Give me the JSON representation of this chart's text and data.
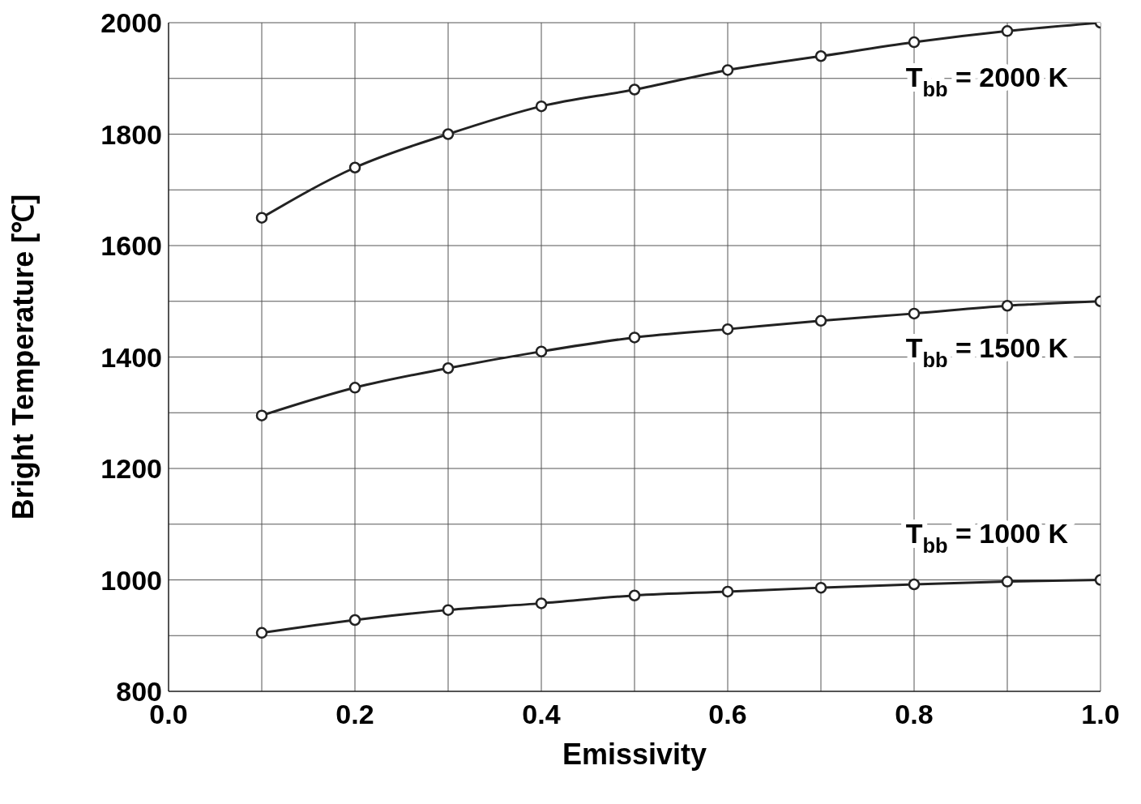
{
  "chart_data": {
    "type": "line",
    "xlabel": "Emissivity",
    "ylabel": "Bright Temperature [℃]",
    "xlim": [
      0,
      1
    ],
    "ylim": [
      800,
      2000
    ],
    "xticks": [
      {
        "value": 0,
        "label": "0.0"
      },
      {
        "value": 0.1,
        "label": null
      },
      0.2,
      {
        "value": 0.3,
        "label": null
      },
      0.4,
      {
        "value": 0.5,
        "label": null
      },
      0.6,
      {
        "value": 0.7,
        "label": null
      },
      0.8,
      {
        "value": 0.9,
        "label": null
      },
      {
        "value": 1,
        "label": "1.0"
      }
    ],
    "yticks": [
      800,
      {
        "value": 900,
        "label": null
      },
      1000,
      {
        "value": 1100,
        "label": null
      },
      1200,
      {
        "value": 1300,
        "label": null
      },
      1400,
      {
        "value": 1500,
        "label": null
      },
      1600,
      {
        "value": 1700,
        "label": null
      },
      1800,
      {
        "value": 1900,
        "label": null
      },
      2000
    ],
    "grid": true,
    "marker": "circle",
    "line_style": "solid",
    "legend": false,
    "x": [
      0.1,
      0.2,
      0.3,
      0.4,
      0.5,
      0.6,
      0.7,
      0.8,
      0.9,
      1.0
    ],
    "series": [
      {
        "name": "T$_{bb}$ = 2000 K",
        "color": "#222222",
        "values": [
          1650,
          1740,
          1800,
          1850,
          1880,
          1915,
          1940,
          1965,
          1985,
          2000
        ]
      },
      {
        "name": "T$_{bb}$ = 1500 K",
        "color": "#222222",
        "values": [
          1295,
          1345,
          1380,
          1410,
          1435,
          1450,
          1465,
          1478,
          1492,
          1500
        ]
      },
      {
        "name": "T$_{bb}$ = 1000 K",
        "color": "#222222",
        "values": [
          905,
          928,
          946,
          958,
          972,
          979,
          986,
          992,
          997,
          1000
        ]
      }
    ]
  }
}
